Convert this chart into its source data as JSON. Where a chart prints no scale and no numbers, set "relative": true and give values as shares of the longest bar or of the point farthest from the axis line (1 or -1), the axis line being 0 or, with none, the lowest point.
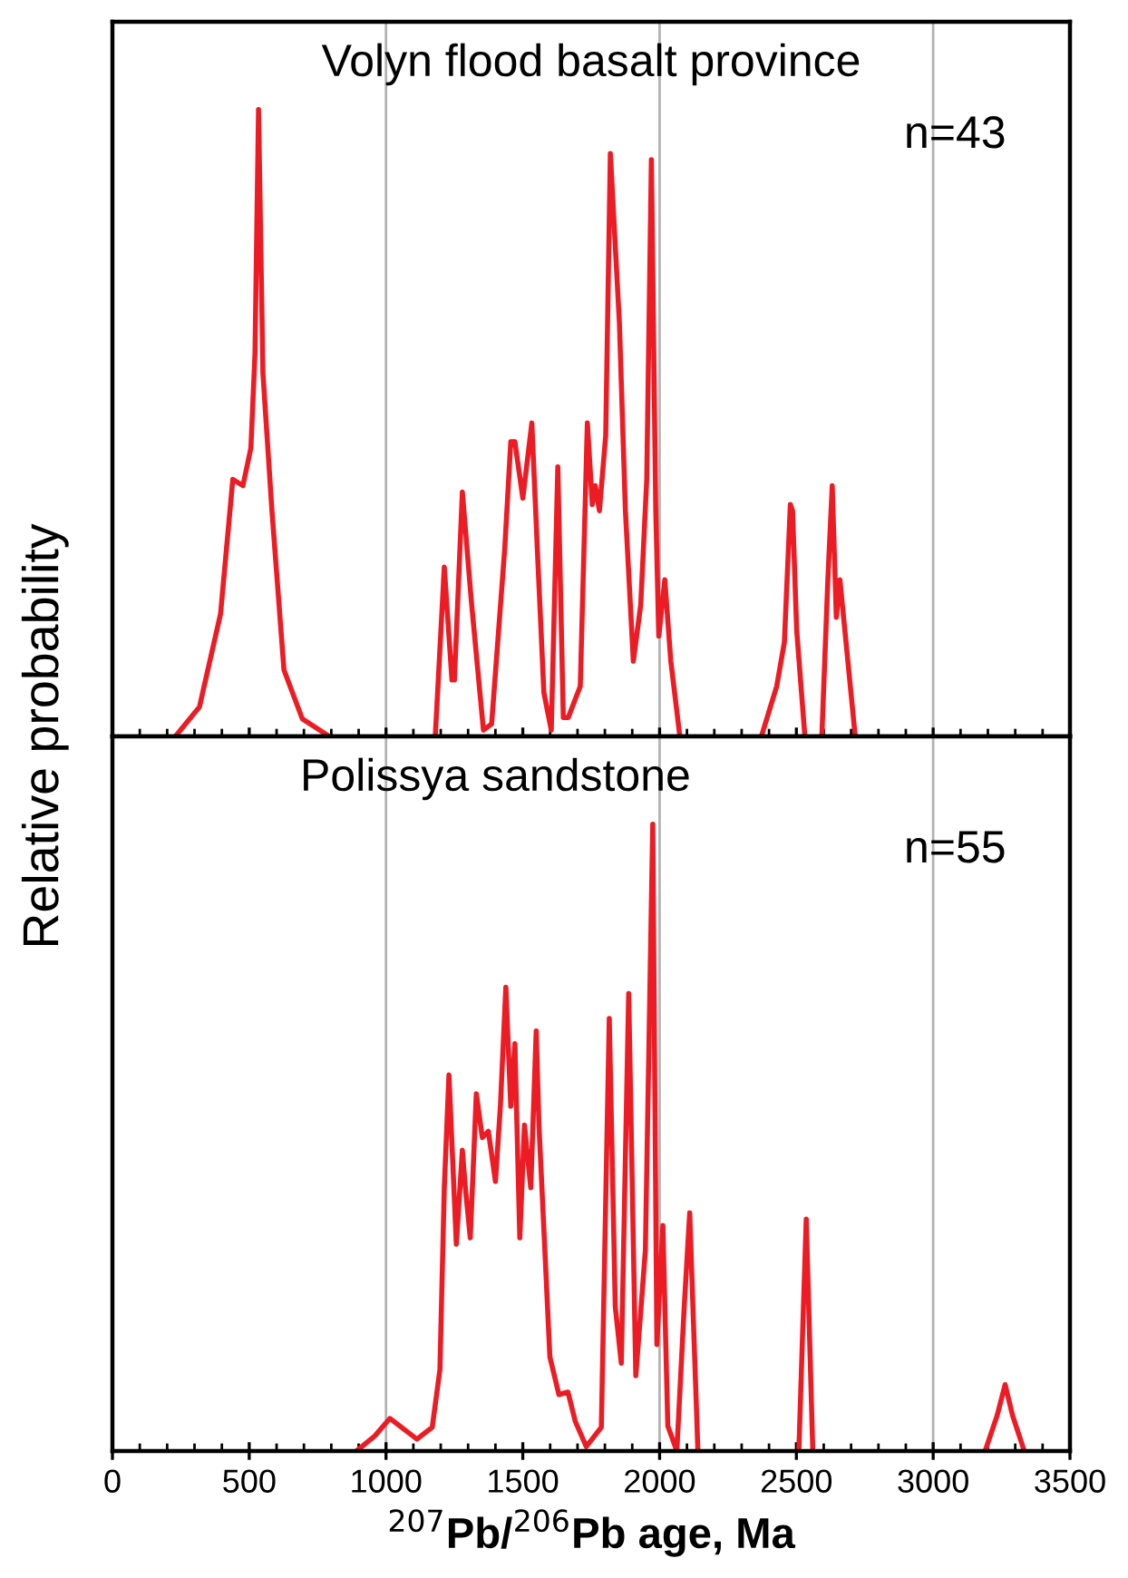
{
  "chart_data": [
    {
      "type": "line",
      "title": "Volyn flood basalt province",
      "ylabel": "Relative probability",
      "annotations": [
        "n=43"
      ],
      "relative": true,
      "tick_labels": false,
      "xlim": [
        0,
        3500
      ],
      "xticks": [
        0,
        {
          "value": 100,
          "label": null
        },
        {
          "value": 200,
          "label": null
        },
        {
          "value": 300,
          "label": null
        },
        {
          "value": 400,
          "label": null
        },
        500,
        {
          "value": 600,
          "label": null
        },
        {
          "value": 700,
          "label": null
        },
        {
          "value": 800,
          "label": null
        },
        {
          "value": 900,
          "label": null
        },
        1000,
        {
          "value": 1100,
          "label": null
        },
        {
          "value": 1200,
          "label": null
        },
        {
          "value": 1300,
          "label": null
        },
        {
          "value": 1400,
          "label": null
        },
        1500,
        {
          "value": 1600,
          "label": null
        },
        {
          "value": 1700,
          "label": null
        },
        {
          "value": 1800,
          "label": null
        },
        {
          "value": 1900,
          "label": null
        },
        2000,
        {
          "value": 2100,
          "label": null
        },
        {
          "value": 2200,
          "label": null
        },
        {
          "value": 2300,
          "label": null
        },
        {
          "value": 2400,
          "label": null
        },
        2500,
        {
          "value": 2600,
          "label": null
        },
        {
          "value": 2700,
          "label": null
        },
        {
          "value": 2800,
          "label": null
        },
        {
          "value": 2900,
          "label": null
        },
        3000,
        {
          "value": 3100,
          "label": null
        },
        {
          "value": 3200,
          "label": null
        },
        {
          "value": 3300,
          "label": null
        },
        {
          "value": 3400,
          "label": null
        },
        3500
      ],
      "ref_lines": [
        {
          "axis": "x",
          "value": 1000,
          "color": "#b3b3b3"
        },
        {
          "axis": "x",
          "value": 2000,
          "color": "#b3b3b3"
        },
        {
          "axis": "x",
          "value": 3000,
          "color": "#b3b3b3"
        }
      ],
      "series": [
        {
          "color": "#ed1c24",
          "x": [
            230,
            318,
            395,
            440,
            477,
            506,
            521,
            534,
            550,
            583,
            627,
            694,
            793,
            1000,
            1180,
            1213,
            1241,
            1250,
            1279,
            1312,
            1356,
            1386,
            1434,
            1456,
            1471,
            1500,
            1533,
            1555,
            1577,
            1604,
            1628,
            1648,
            1666,
            1710,
            1736,
            1754,
            1765,
            1780,
            1803,
            1820,
            1853,
            1875,
            1904,
            1931,
            1953,
            1970,
            1986,
            1997,
            2019,
            2041,
            2074,
            2200,
            2372,
            2428,
            2456,
            2478,
            2486,
            2501,
            2531,
            2560,
            2593,
            2615,
            2631,
            2646,
            2659,
            2677,
            2715
          ],
          "values": [
            0,
            0.047,
            0.195,
            0.41,
            0.4,
            0.46,
            0.61,
            1.0,
            0.58,
            0.36,
            0.106,
            0.028,
            0,
            null,
            0,
            0.27,
            0.09,
            0.09,
            0.39,
            0.215,
            0.01,
            0.02,
            0.3,
            0.47,
            0.47,
            0.38,
            0.5,
            0.28,
            0.07,
            0.01,
            0.43,
            0.03,
            0.03,
            0.08,
            0.5,
            0.37,
            0.4,
            0.36,
            0.48,
            0.93,
            0.66,
            0.36,
            0.12,
            0.21,
            0.41,
            0.92,
            0.36,
            0.16,
            0.25,
            0.12,
            0,
            null,
            0,
            0.08,
            0.15,
            0.37,
            0.36,
            0.17,
            0,
            null,
            0,
            0.25,
            0.4,
            0.19,
            0.25,
            0.17,
            0
          ]
        }
      ]
    },
    {
      "type": "line",
      "title": "Polissya sandstone",
      "xlabel": "$^{207}$Pb/$^{206}$Pb age, Ma",
      "annotations": [
        "n=55"
      ],
      "relative": true,
      "tick_labels": "x",
      "xlim": [
        0,
        3500
      ],
      "xticks": [
        0,
        {
          "value": 100,
          "label": null
        },
        {
          "value": 200,
          "label": null
        },
        {
          "value": 300,
          "label": null
        },
        {
          "value": 400,
          "label": null
        },
        500,
        {
          "value": 600,
          "label": null
        },
        {
          "value": 700,
          "label": null
        },
        {
          "value": 800,
          "label": null
        },
        {
          "value": 900,
          "label": null
        },
        1000,
        {
          "value": 1100,
          "label": null
        },
        {
          "value": 1200,
          "label": null
        },
        {
          "value": 1300,
          "label": null
        },
        {
          "value": 1400,
          "label": null
        },
        1500,
        {
          "value": 1600,
          "label": null
        },
        {
          "value": 1700,
          "label": null
        },
        {
          "value": 1800,
          "label": null
        },
        {
          "value": 1900,
          "label": null
        },
        2000,
        {
          "value": 2100,
          "label": null
        },
        {
          "value": 2200,
          "label": null
        },
        {
          "value": 2300,
          "label": null
        },
        {
          "value": 2400,
          "label": null
        },
        2500,
        {
          "value": 2600,
          "label": null
        },
        {
          "value": 2700,
          "label": null
        },
        {
          "value": 2800,
          "label": null
        },
        {
          "value": 2900,
          "label": null
        },
        3000,
        {
          "value": 3100,
          "label": null
        },
        {
          "value": 3200,
          "label": null
        },
        {
          "value": 3300,
          "label": null
        },
        {
          "value": 3400,
          "label": null
        },
        3500
      ],
      "ref_lines": [
        {
          "axis": "x",
          "value": 1000,
          "color": "#b3b3b3"
        },
        {
          "axis": "x",
          "value": 2000,
          "color": "#b3b3b3"
        },
        {
          "axis": "x",
          "value": 3000,
          "color": "#b3b3b3"
        }
      ],
      "series": [
        {
          "color": "#ed1c24",
          "x": [
            892,
            959,
            1014,
            1113,
            1169,
            1197,
            1213,
            1230,
            1257,
            1279,
            1290,
            1308,
            1330,
            1352,
            1374,
            1400,
            1418,
            1438,
            1456,
            1471,
            1489,
            1506,
            1529,
            1549,
            1559,
            1599,
            1632,
            1665,
            1692,
            1732,
            1787,
            1816,
            1838,
            1860,
            1887,
            1913,
            1948,
            1975,
            1990,
            2012,
            2030,
            2063,
            2090,
            2110,
            2140,
            2300,
            2509,
            2536,
            2560,
            2900,
            3190,
            3234,
            3263,
            3290,
            3333
          ],
          "values": [
            0,
            0.024,
            0.052,
            0.019,
            0.038,
            0.13,
            0.42,
            0.6,
            0.33,
            0.48,
            0.42,
            0.34,
            0.57,
            0.5,
            0.51,
            0.43,
            0.55,
            0.74,
            0.55,
            0.65,
            0.34,
            0.52,
            0.42,
            0.67,
            0.52,
            0.15,
            0.09,
            0.094,
            0.047,
            0.007,
            0.038,
            0.69,
            0.23,
            0.14,
            0.73,
            0.12,
            0.32,
            1.0,
            0.17,
            0.36,
            0.04,
            0,
            0.23,
            0.38,
            0,
            null,
            0,
            0.37,
            0,
            null,
            0,
            0.057,
            0.106,
            0.057,
            0
          ]
        }
      ]
    }
  ]
}
